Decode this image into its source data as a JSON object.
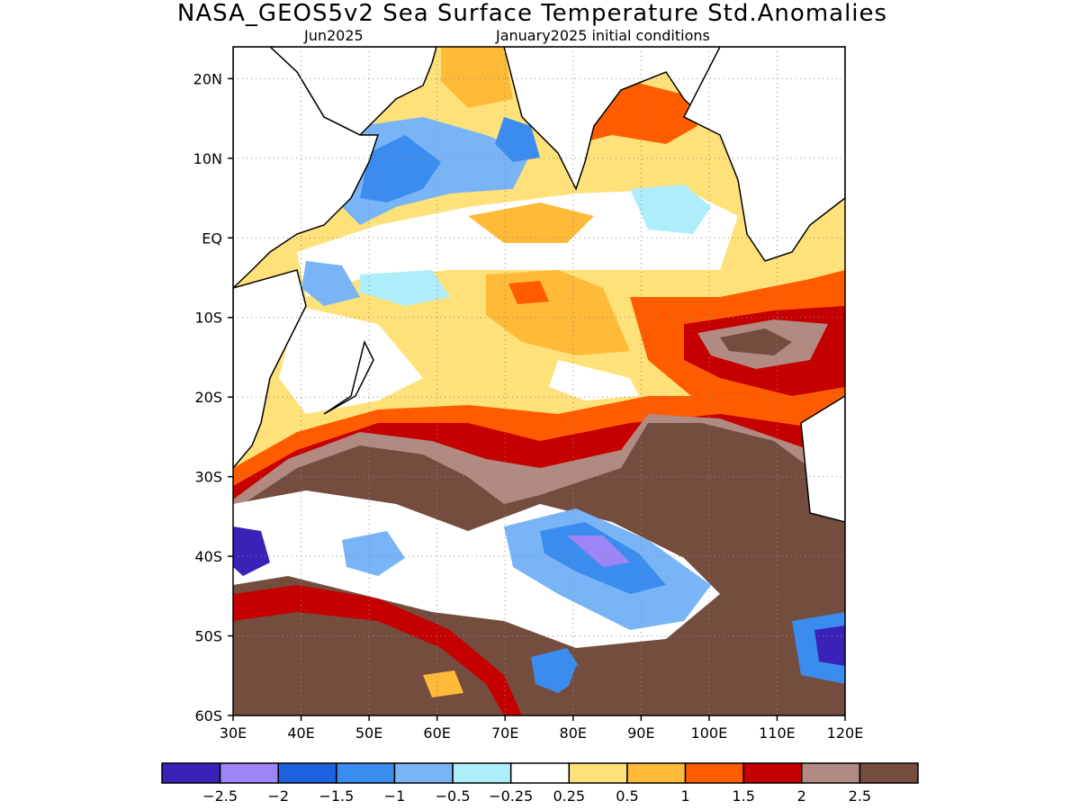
{
  "header": {
    "title": "NASA_GEOS5v2 Sea Surface Temperature Std.Anomalies",
    "valid_month": "Jun2025",
    "init_conditions": "January2025 initial conditions"
  },
  "map": {
    "lon_range": [
      30,
      120
    ],
    "lat_range": [
      -60,
      24
    ],
    "lat_ticks": [
      {
        "lat": 20,
        "label": "20N"
      },
      {
        "lat": 10,
        "label": "10N"
      },
      {
        "lat": 0,
        "label": "EQ"
      },
      {
        "lat": -10,
        "label": "10S"
      },
      {
        "lat": -20,
        "label": "20S"
      },
      {
        "lat": -30,
        "label": "30S"
      },
      {
        "lat": -40,
        "label": "40S"
      },
      {
        "lat": -50,
        "label": "50S"
      },
      {
        "lat": -60,
        "label": "60S"
      }
    ],
    "lon_ticks": [
      {
        "lon": 30,
        "label": "30E"
      },
      {
        "lon": 40,
        "label": "40E"
      },
      {
        "lon": 50,
        "label": "50E"
      },
      {
        "lon": 60,
        "label": "60E"
      },
      {
        "lon": 70,
        "label": "70E"
      },
      {
        "lon": 80,
        "label": "80E"
      },
      {
        "lon": 90,
        "label": "90E"
      },
      {
        "lon": 100,
        "label": "100E"
      },
      {
        "lon": 110,
        "label": "110E"
      },
      {
        "lon": 120,
        "label": "120E"
      }
    ],
    "gridlines": "dotted"
  },
  "colorbar": {
    "colors": [
      "#3a22b8",
      "#9d85f5",
      "#1e62e0",
      "#3b8cef",
      "#79b4f7",
      "#aeeefa",
      "#ffffff",
      "#ffe17a",
      "#ffba38",
      "#ff5c00",
      "#c40000",
      "#b18a82",
      "#754d3f"
    ],
    "labels": [
      "−2.5",
      "−2",
      "−1.5",
      "−1",
      "−0.5",
      "−0.25",
      "0.25",
      "0.5",
      "1",
      "1.5",
      "2",
      "2.5"
    ]
  }
}
